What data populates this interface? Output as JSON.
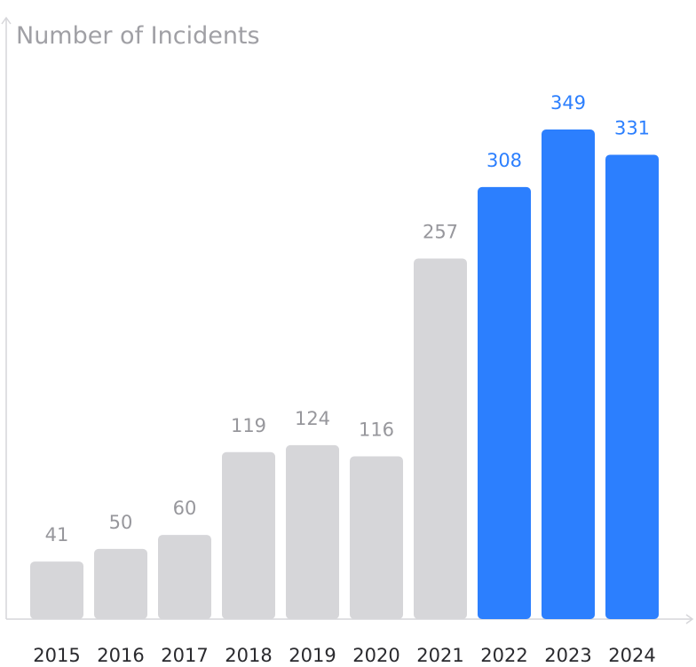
{
  "chart_data": {
    "type": "bar",
    "ylabel": "Number of Incidents",
    "xlabel": "",
    "categories": [
      "2015",
      "2016",
      "2017",
      "2018",
      "2019",
      "2020",
      "2021",
      "2022",
      "2023",
      "2024"
    ],
    "values": [
      41,
      50,
      60,
      119,
      124,
      116,
      257,
      308,
      349,
      331
    ],
    "ylim": [
      0,
      380
    ],
    "grid": false,
    "legend": "none",
    "highlighted_categories": [
      "2022",
      "2023",
      "2024"
    ]
  },
  "colors": {
    "bar_default": "#d6d6d9",
    "bar_highlight": "#2c7ffe",
    "label_default": "#97979c",
    "label_highlight": "#2c7ffe",
    "tick_text": "#2a2a2e",
    "axis": "#d6d6da"
  }
}
